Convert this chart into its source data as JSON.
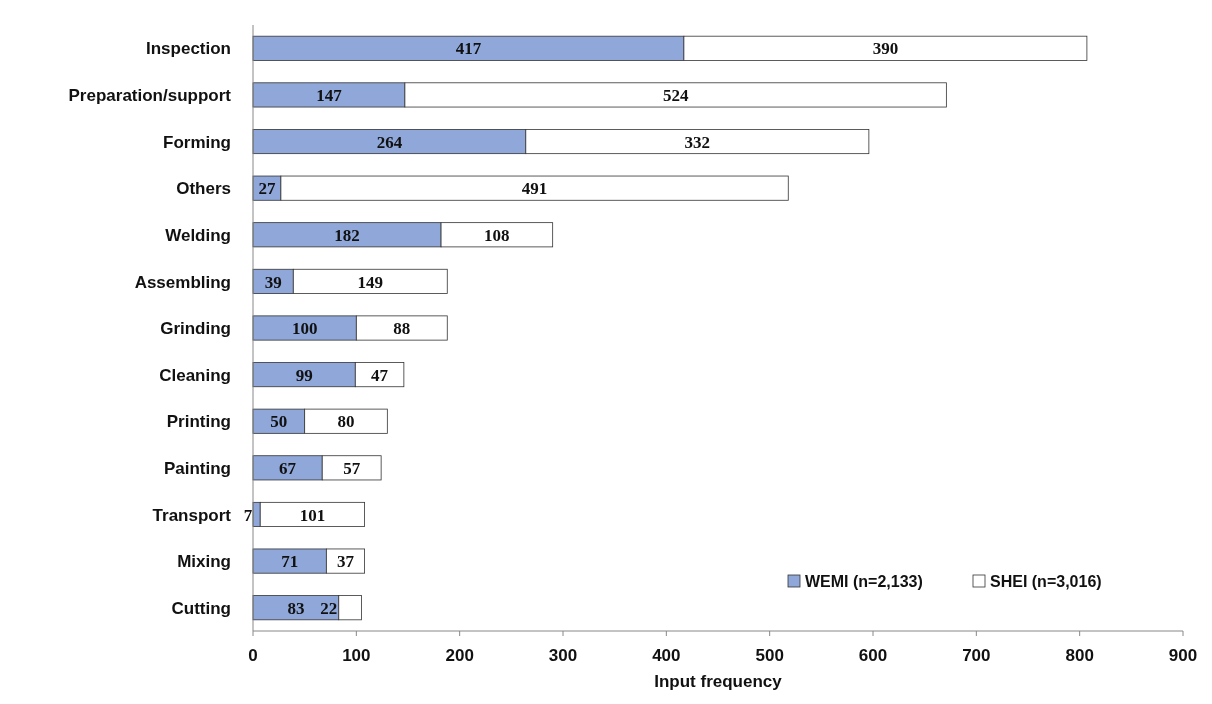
{
  "chart_data": {
    "type": "bar",
    "orientation": "horizontal",
    "stacked": true,
    "xlabel": "Input frequency",
    "categories": [
      "Inspection",
      "Preparation/support",
      "Forming",
      "Others",
      "Welding",
      "Assembling",
      "Grinding",
      "Cleaning",
      "Printing",
      "Painting",
      "Transport",
      "Mixing",
      "Cutting"
    ],
    "series": [
      {
        "name": "WEMI (n=2,133)",
        "color": "#8fa7d9",
        "values": [
          417,
          147,
          264,
          27,
          182,
          39,
          100,
          99,
          50,
          67,
          7,
          71,
          83
        ]
      },
      {
        "name": "SHEI (n=3,016)",
        "color": "#ffffff",
        "values": [
          390,
          524,
          332,
          491,
          108,
          149,
          88,
          47,
          80,
          57,
          101,
          37,
          22
        ]
      }
    ],
    "xlim": [
      0,
      900
    ],
    "xticks": [
      0,
      100,
      200,
      300,
      400,
      500,
      600,
      700,
      800,
      900
    ],
    "data_labels": true,
    "legend": "bottom right",
    "grid": false
  }
}
